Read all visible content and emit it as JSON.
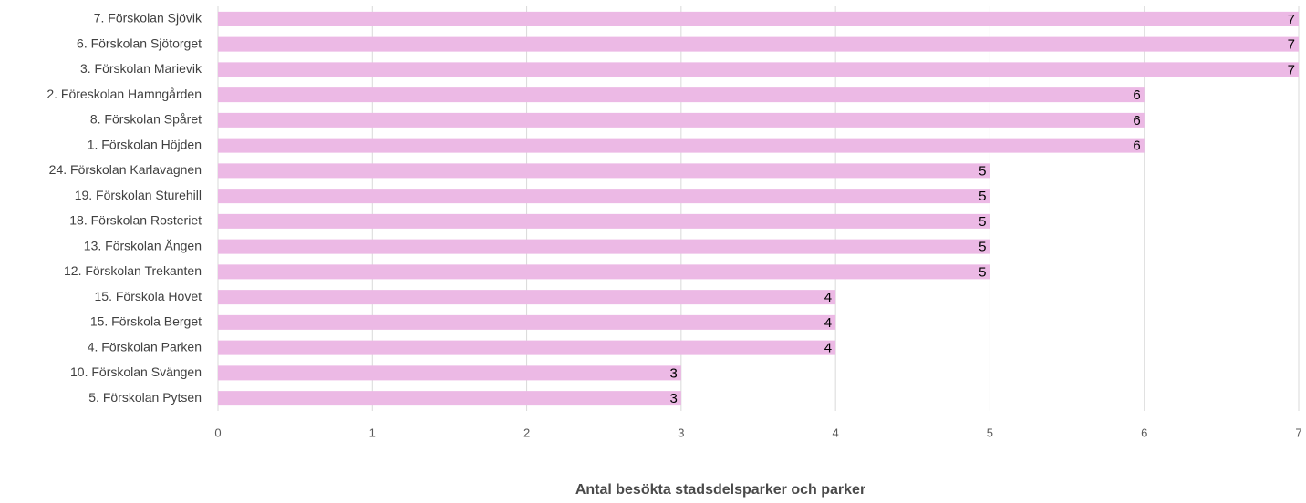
{
  "chart_data": {
    "type": "bar",
    "orientation": "horizontal",
    "categories": [
      "7. Förskolan Sjövik",
      "6. Förskolan Sjötorget",
      "3. Förskolan Marievik",
      "2. Föreskolan Hamngården",
      "8. Förskolan Spåret",
      "1. Förskolan Höjden",
      "24. Förskolan Karlavagnen",
      "19. Förskolan Sturehill",
      "18. Förskolan Rosteriet",
      "13. Förskolan Ängen",
      "12. Förskolan Trekanten",
      "15. Förskola Hovet",
      "15. Förskola Berget",
      "4. Förskolan Parken",
      "10. Förskolan Svängen",
      "5. Förskolan Pytsen"
    ],
    "values": [
      7,
      7,
      7,
      6,
      6,
      6,
      5,
      5,
      5,
      5,
      5,
      4,
      4,
      4,
      3,
      3
    ],
    "color": "#ecb9e5",
    "xlabel": "Antal besökta stadsdelsparker och parker",
    "xlim": [
      0,
      7
    ],
    "xticks": [
      0,
      1,
      2,
      3,
      4,
      5,
      6,
      7
    ],
    "grid": true
  }
}
